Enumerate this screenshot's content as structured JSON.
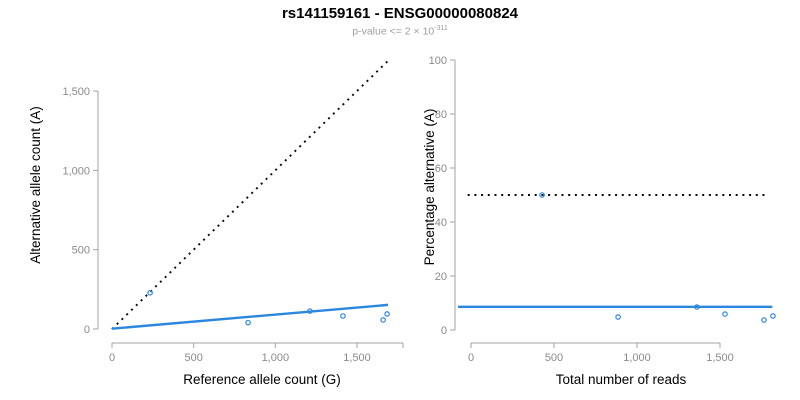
{
  "header": {
    "title": "rs141159161 - ENSG00000080824",
    "subtitle_base": "p-value <= 2 × 10",
    "subtitle_exponent": "-311"
  },
  "colors": {
    "fit_line": "#2b86e0",
    "identity_line": "#0a0a0a",
    "point_stroke": "#2b86e0",
    "axis_line": "#a3a3a3",
    "tick_label": "#8a8a8a",
    "axis_title": "#000000"
  },
  "chart_data": [
    {
      "type": "scatter",
      "panel": "left",
      "xlabel": "Reference allele count (G)",
      "ylabel": "Alternative allele count (A)",
      "x_ticks": [
        0,
        500,
        1000,
        1500
      ],
      "y_ticks": [
        0,
        500,
        1000,
        1500
      ],
      "xlim": [
        0,
        1785
      ],
      "ylim": [
        0,
        1750
      ],
      "grid": false,
      "points": [
        [
          233,
          228
        ],
        [
          833,
          40
        ],
        [
          1212,
          113
        ],
        [
          1414,
          82
        ],
        [
          1660,
          57
        ],
        [
          1684,
          95
        ]
      ],
      "lines": [
        {
          "name": "identity",
          "style": "dotted",
          "color": "#0a0a0a",
          "from": [
            0,
            0
          ],
          "to": [
            1700,
            1700
          ]
        },
        {
          "name": "fit",
          "style": "solid",
          "color": "#2b86e0",
          "from": [
            0,
            2
          ],
          "to": [
            1690,
            152
          ]
        }
      ]
    },
    {
      "type": "scatter",
      "panel": "right",
      "xlabel": "Total number of reads",
      "ylabel": "Percentage alternative (A)",
      "x_ticks": [
        0,
        500,
        1000,
        1500
      ],
      "y_ticks": [
        0,
        20,
        40,
        60,
        80,
        100
      ],
      "xlim": [
        0,
        1850
      ],
      "ylim": [
        0,
        100
      ],
      "grid": false,
      "points": [
        [
          428,
          50
        ],
        [
          886,
          4.8
        ],
        [
          1361,
          8.5
        ],
        [
          1530,
          5.9
        ],
        [
          1765,
          3.7
        ],
        [
          1819,
          5.2
        ]
      ],
      "lines": [
        {
          "name": "expected-50pct",
          "style": "dotted",
          "color": "#0a0a0a",
          "from": [
            -20,
            50
          ],
          "to": [
            1795,
            50
          ]
        },
        {
          "name": "fit",
          "style": "solid",
          "color": "#2b86e0",
          "from": [
            -78,
            8.6
          ],
          "to": [
            1815,
            8.6
          ]
        }
      ]
    }
  ]
}
